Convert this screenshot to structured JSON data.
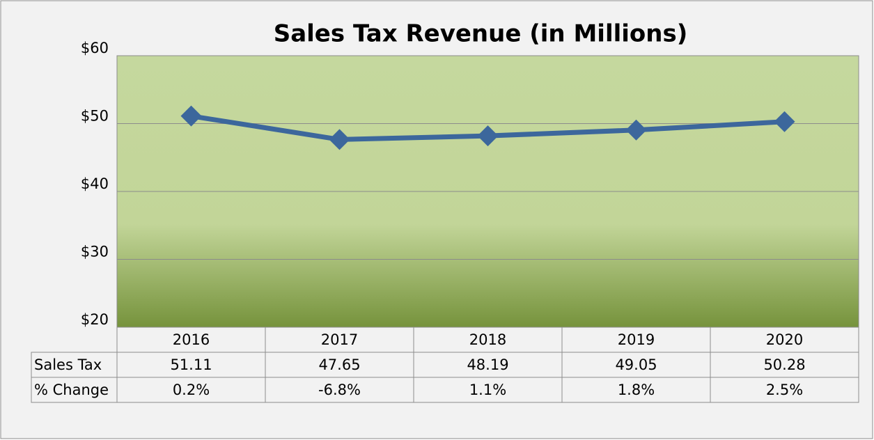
{
  "chart_data": {
    "type": "line",
    "title": "Sales Tax Revenue (in Millions)",
    "categories": [
      "2016",
      "2017",
      "2018",
      "2019",
      "2020"
    ],
    "series": [
      {
        "name": "Sales Tax",
        "color": "#3c679c",
        "values": [
          51.11,
          47.65,
          48.19,
          49.05,
          50.28
        ]
      }
    ],
    "data_table": {
      "rows": [
        {
          "name": "% Change",
          "values": [
            0.2,
            -6.8,
            1.1,
            1.8,
            2.5
          ],
          "value_labels": [
            "0.2%",
            "-6.8%",
            "1.1%",
            "1.8%",
            "2.5%"
          ]
        }
      ]
    },
    "ylim": [
      20,
      60
    ],
    "yticks": [
      {
        "value": 20,
        "label": "$20"
      },
      {
        "value": 30,
        "label": "$30"
      },
      {
        "value": 40,
        "label": "$40"
      },
      {
        "value": 50,
        "label": "$50"
      },
      {
        "value": 60,
        "label": "$60"
      }
    ],
    "grid": true
  }
}
